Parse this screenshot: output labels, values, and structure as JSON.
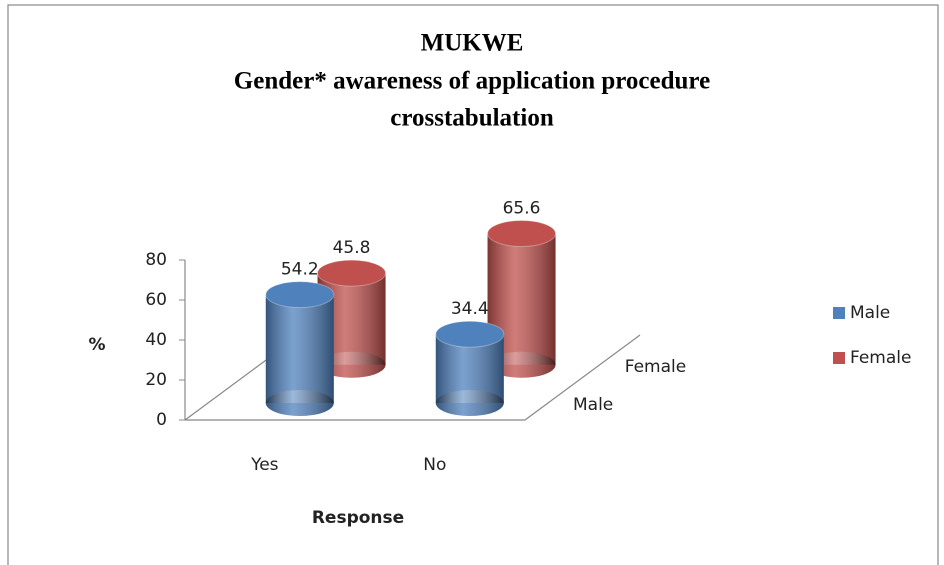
{
  "chart_data": {
    "type": "bar3d",
    "title": [
      "MUKWE",
      "Gender* awareness of application procedure",
      "crosstabulation"
    ],
    "xlabel": "Response",
    "ylabel": "%",
    "categories": [
      "Yes",
      "No"
    ],
    "series": [
      {
        "name": "Male",
        "color": "#4f81bd",
        "values": [
          54.2,
          34.4
        ]
      },
      {
        "name": "Female",
        "color": "#c0504d",
        "values": [
          45.8,
          65.6
        ]
      }
    ],
    "ylim": [
      0,
      80
    ],
    "yticks": [
      0,
      20,
      40,
      60,
      80
    ],
    "legend": "right"
  }
}
